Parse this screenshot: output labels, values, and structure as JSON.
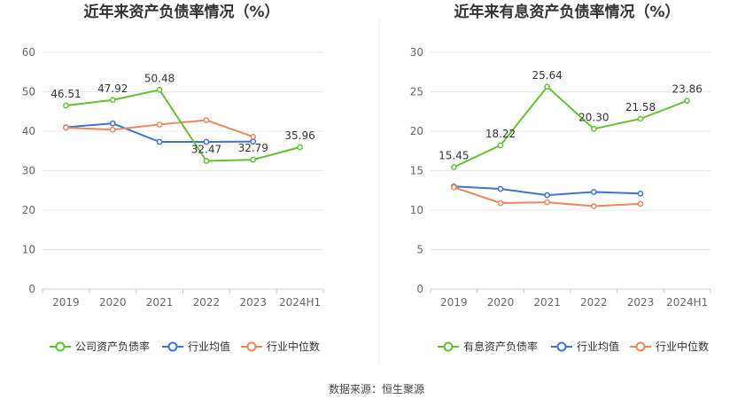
{
  "source_text": "数据来源：恒生聚源",
  "chart_data": [
    {
      "type": "line",
      "title": "近年来资产负债率情况（%）",
      "categories": [
        "2019",
        "2020",
        "2021",
        "2022",
        "2023",
        "2024H1"
      ],
      "ylim": [
        0,
        60
      ],
      "yticks": [
        0,
        10,
        20,
        30,
        40,
        50,
        60
      ],
      "grid": true,
      "legend_position": "bottom",
      "series": [
        {
          "name": "公司资产负债率",
          "color": "#5cc52e",
          "values": [
            46.51,
            47.92,
            50.48,
            32.47,
            32.79,
            35.96
          ],
          "labels": [
            "46.51",
            "47.92",
            "50.48",
            "32.47",
            "32.79",
            "35.96"
          ]
        },
        {
          "name": "行业均值",
          "color": "#3a73d6",
          "values": [
            41.0,
            42.0,
            37.3,
            37.3,
            37.4,
            null
          ],
          "labels": []
        },
        {
          "name": "行业中位数",
          "color": "#f0855a",
          "values": [
            40.9,
            40.4,
            41.7,
            42.8,
            38.6,
            null
          ],
          "labels": []
        }
      ]
    },
    {
      "type": "line",
      "title": "近年来有息资产负债率情况（%）",
      "categories": [
        "2019",
        "2020",
        "2021",
        "2022",
        "2023",
        "2024H1"
      ],
      "ylim": [
        0,
        30
      ],
      "yticks": [
        0,
        5,
        10,
        15,
        20,
        25,
        30
      ],
      "grid": true,
      "legend_position": "bottom",
      "series": [
        {
          "name": "有息资产负债率",
          "color": "#5cc52e",
          "values": [
            15.45,
            18.22,
            25.64,
            20.3,
            21.58,
            23.86
          ],
          "labels": [
            "15.45",
            "18.22",
            "25.64",
            "20.30",
            "21.58",
            "23.86"
          ]
        },
        {
          "name": "行业均值",
          "color": "#3a73d6",
          "values": [
            13.0,
            12.7,
            11.9,
            12.3,
            12.1,
            null
          ],
          "labels": []
        },
        {
          "name": "行业中位数",
          "color": "#f0855a",
          "values": [
            12.9,
            10.9,
            11.0,
            10.5,
            10.8,
            null
          ],
          "labels": []
        }
      ]
    }
  ]
}
